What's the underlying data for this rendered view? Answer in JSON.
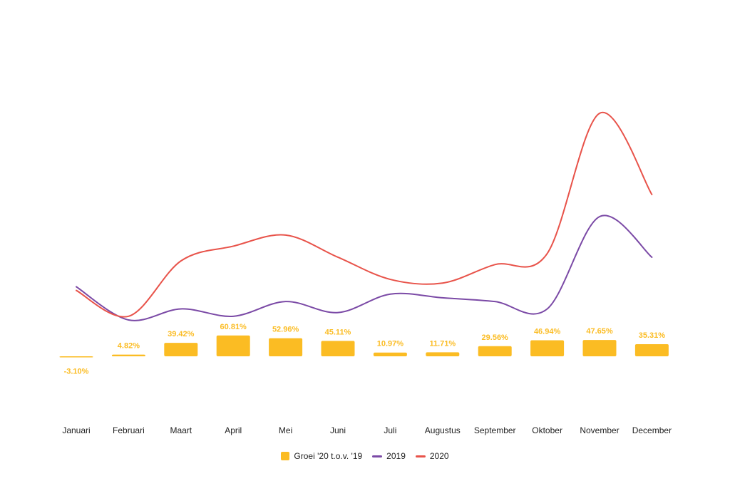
{
  "colors": {
    "bars": "#FBBC23",
    "line2019": "#7B4AA6",
    "line2020": "#E8534A"
  },
  "legend": {
    "bars": "Groei '20 t.o.v. '19",
    "line2019": "2019",
    "line2020": "2020"
  },
  "chart_data": {
    "type": "bar+line",
    "categories": [
      "Januari",
      "Februari",
      "Maart",
      "April",
      "Mei",
      "Juni",
      "Juli",
      "Augustus",
      "September",
      "Oktober",
      "November",
      "December"
    ],
    "bar_series": {
      "name": "Groei '20 t.o.v. '19",
      "values": [
        -3.1,
        4.82,
        39.42,
        60.81,
        52.96,
        45.11,
        10.97,
        11.71,
        29.56,
        46.94,
        47.65,
        35.31
      ],
      "labels": [
        "-3.10%",
        "4.82%",
        "39.42%",
        "60.81%",
        "52.96%",
        "45.11%",
        "10.97%",
        "11.71%",
        "29.56%",
        "46.94%",
        "47.65%",
        "35.31%"
      ]
    },
    "line_series": [
      {
        "name": "2019",
        "values": [
          39,
          30,
          33,
          31,
          35,
          32,
          37,
          36,
          35,
          33,
          58,
          47
        ]
      },
      {
        "name": "2020",
        "values": [
          38,
          31,
          46,
          50,
          53,
          47,
          41,
          40,
          45,
          48,
          86,
          64
        ]
      }
    ],
    "legend_position": "bottom",
    "grid": false
  }
}
